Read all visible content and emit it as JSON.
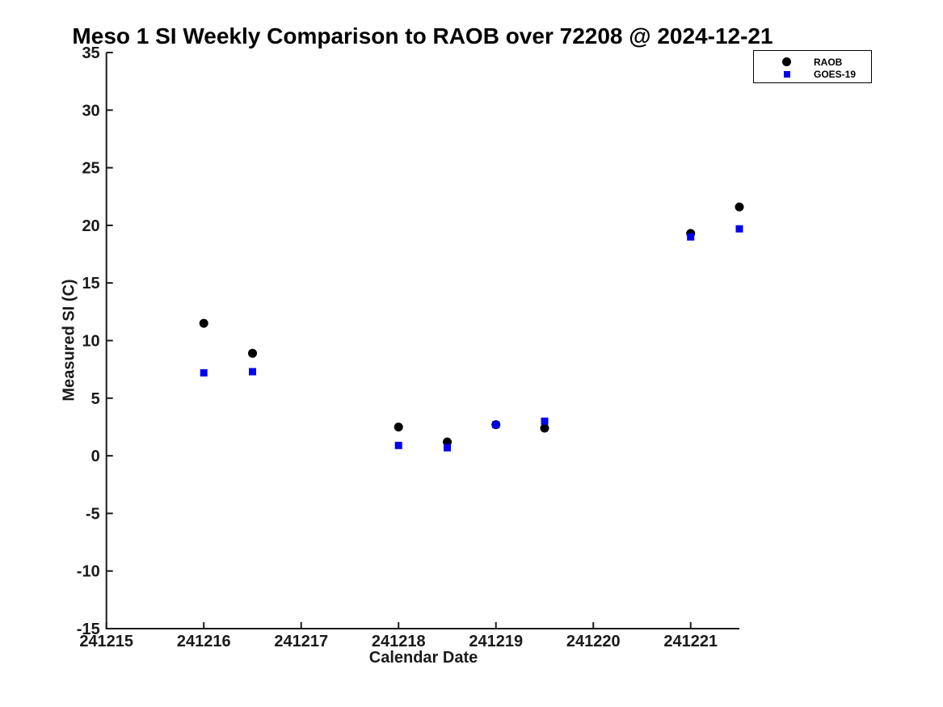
{
  "title": "Meso 1 SI Weekly Comparison to RAOB over 72208 @ 2024-12-21",
  "colors": {
    "background": "#ffffff",
    "axis": "#1a1a1a",
    "title_text": "#000000",
    "raob": "#000000",
    "goes19": "#0000ee"
  },
  "chart_data": {
    "type": "scatter",
    "title": "Meso 1 SI Weekly Comparison to RAOB over 72208 @ 2024-12-21",
    "xlabel": "Calendar Date",
    "ylabel": "Measured SI (C)",
    "xlim": [
      241215,
      241221.5
    ],
    "ylim": [
      -15,
      35
    ],
    "x_ticks": [
      241215,
      241216,
      241217,
      241218,
      241219,
      241220,
      241221
    ],
    "y_ticks": [
      -15,
      -10,
      -5,
      0,
      5,
      10,
      15,
      20,
      25,
      30,
      35
    ],
    "grid": false,
    "x": [
      241216.0,
      241216.5,
      241218.0,
      241218.5,
      241219.0,
      241219.5,
      241221.0,
      241221.5
    ],
    "series": [
      {
        "name": "RAOB",
        "marker": "circle",
        "color": "#000000",
        "values": [
          11.5,
          8.9,
          2.5,
          1.2,
          2.7,
          2.4,
          19.3,
          21.6
        ]
      },
      {
        "name": "GOES-19",
        "marker": "square",
        "color": "#0000ee",
        "values": [
          7.2,
          7.3,
          0.9,
          0.7,
          2.7,
          3.0,
          19.0,
          19.7
        ]
      }
    ],
    "legend": {
      "position": "top-right",
      "entries": [
        "RAOB",
        "GOES-19"
      ]
    }
  }
}
